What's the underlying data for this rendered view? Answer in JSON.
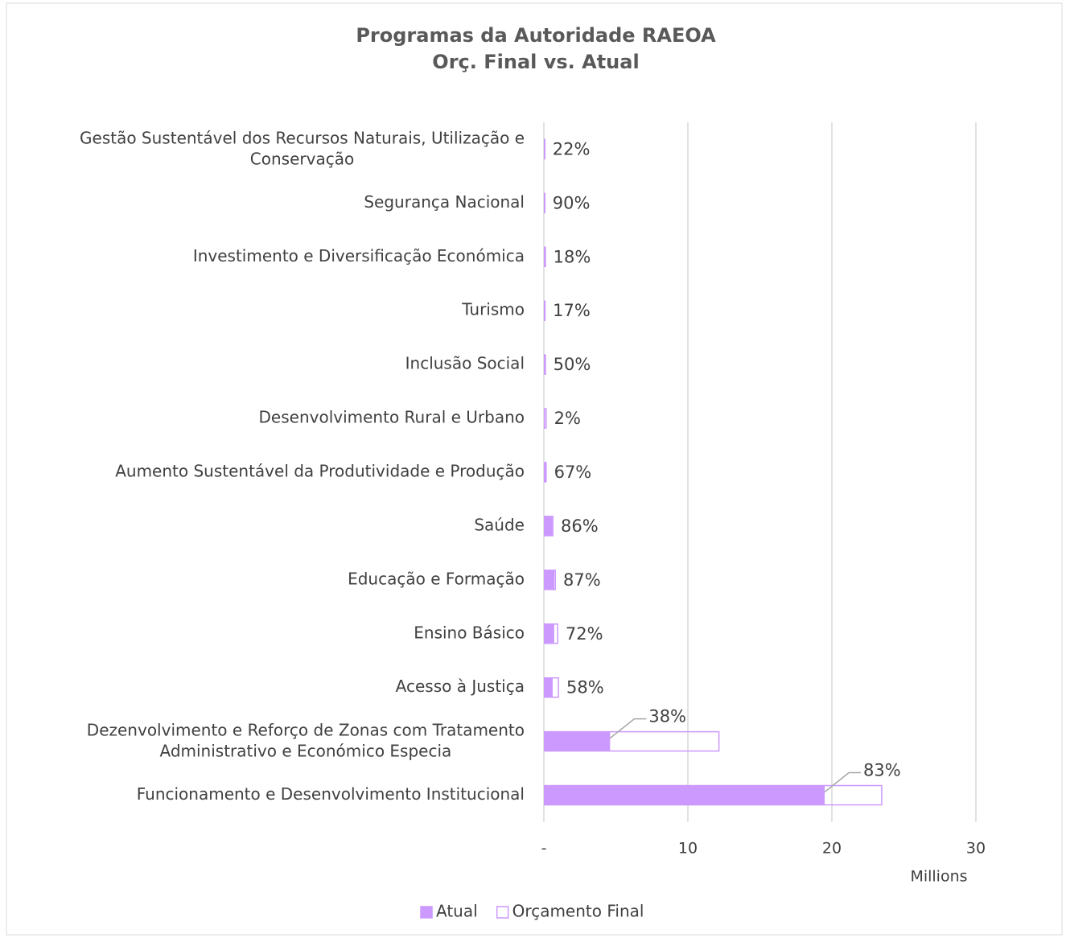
{
  "chart_data": {
    "type": "bar",
    "orientation": "horizontal",
    "overlap": true,
    "title": [
      "Programas da Autoridade RAEOA",
      "Orç. Final vs. Atual"
    ],
    "categories": [
      "Gestão Sustentável dos Recursos Naturais, Utilização e Conservação",
      "Segurança Nacional",
      "Investimento e Diversificação Económica",
      "Turismo",
      "Inclusão Social",
      "Desenvolvimento Rural e Urbano",
      "Aumento Sustentável da Produtividade e Produção",
      "Saúde",
      "Educação e Formação",
      "Ensino Básico",
      "Acesso à Justiça",
      "Dezenvolvimento e Reforço de Zonas com Tratamento Administrativo e Económico Especia",
      "Funcionamento e Desenvolvimento Institucional"
    ],
    "series": [
      {
        "name": "Atual",
        "color": "#cc99ff",
        "style": "filled",
        "values": [
          0.022,
          0.09,
          0.027,
          0.02,
          0.075,
          0.004,
          0.13,
          0.58,
          0.73,
          0.72,
          0.61,
          4.6,
          19.5
        ]
      },
      {
        "name": "Orçamento Final",
        "color": "#cc99ff",
        "style": "outline",
        "values": [
          0.1,
          0.1,
          0.15,
          0.12,
          0.15,
          0.2,
          0.2,
          0.67,
          0.84,
          1.0,
          1.06,
          12.2,
          23.5
        ]
      }
    ],
    "data_labels": [
      "22%",
      "90%",
      "18%",
      "17%",
      "50%",
      "2%",
      "67%",
      "86%",
      "87%",
      "72%",
      "58%",
      "38%",
      "83%"
    ],
    "xlim": [
      0,
      30
    ],
    "xticks": [
      {
        "value": 0,
        "label": "-"
      },
      10,
      20,
      30
    ],
    "x_unit_label": "Millions",
    "grid": true,
    "legend": "bottom"
  }
}
